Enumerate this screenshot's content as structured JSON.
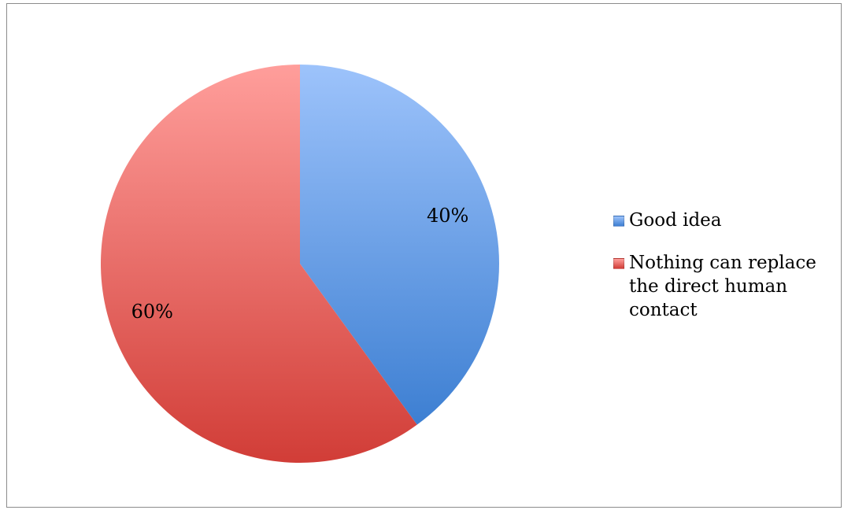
{
  "chart_data": {
    "type": "pie",
    "categories": [
      "Good idea",
      "Nothing can replace the direct human contact"
    ],
    "values": [
      40,
      60
    ],
    "data_labels": [
      "40%",
      "60%"
    ],
    "colors": [
      "#4a86d4",
      "#d4403a"
    ],
    "legend_position": "right"
  },
  "legend": {
    "items": [
      {
        "label": "Good idea",
        "color": "#4a86d4"
      },
      {
        "label": "Nothing can replace the direct human contact",
        "color": "#d4403a"
      }
    ]
  }
}
